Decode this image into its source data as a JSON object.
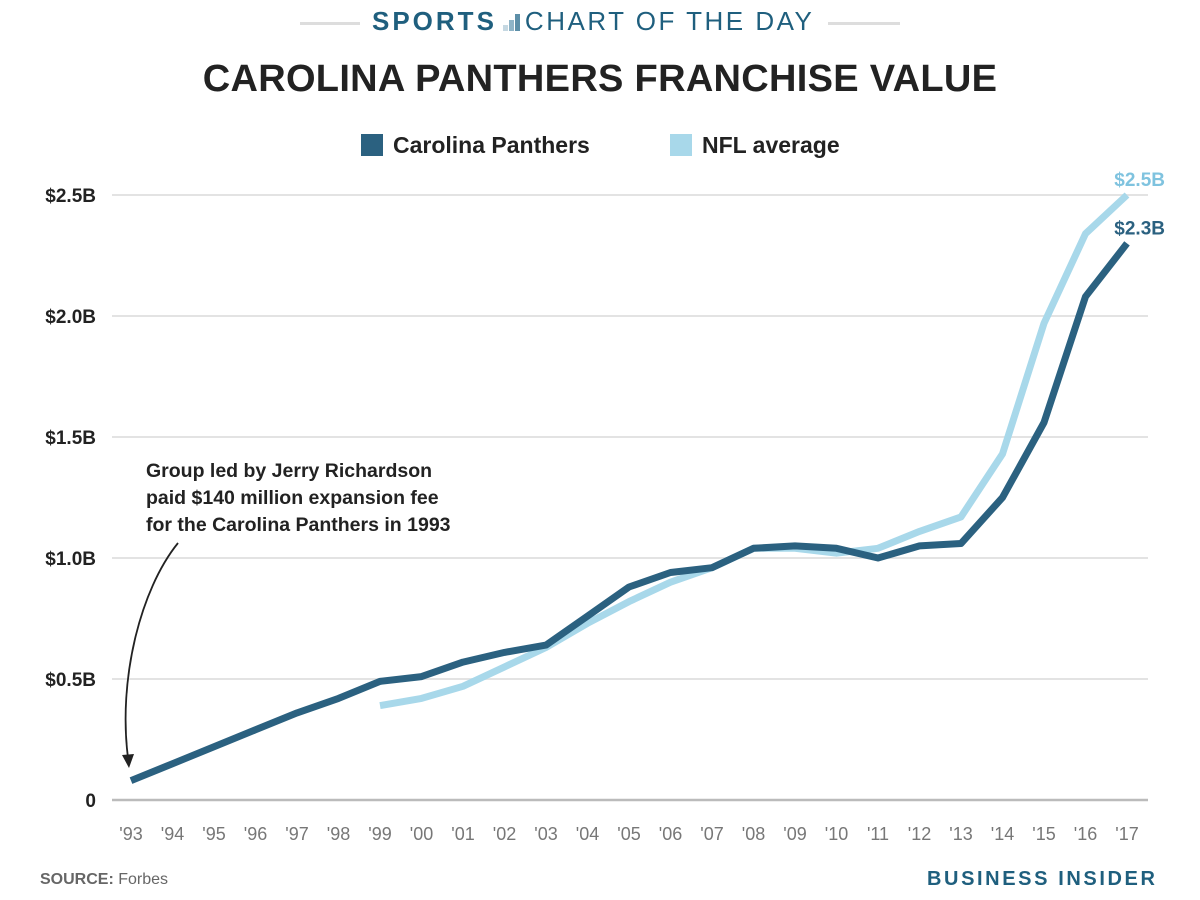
{
  "header": {
    "kicker_bold": "SPORTS",
    "kicker_rest": "CHART OF THE DAY",
    "kicker_icon": "bar-chart-icon",
    "title": "CAROLINA PANTHERS FRANCHISE VALUE"
  },
  "colors": {
    "panthers": "#2b6180",
    "nfl_average": "#a8d8ea",
    "panthers_label": "#2b6180",
    "nfl_label": "#7fc3df",
    "brand": "#1f5f7e",
    "grid": "#e3e3e3",
    "axis": "#bbbbbb"
  },
  "annotation": {
    "lines": [
      "Group led by Jerry Richardson",
      "paid $140 million expansion fee",
      "for the Carolina Panthers in 1993"
    ]
  },
  "footer": {
    "source_label": "SOURCE:",
    "source_value": "Forbes",
    "brand": "BUSINESS INSIDER"
  },
  "chart_data": {
    "type": "line",
    "title": "CAROLINA PANTHERS FRANCHISE VALUE",
    "xlabel": "",
    "ylabel": "",
    "unit": "billions USD",
    "x": [
      "'93",
      "'94",
      "'95",
      "'96",
      "'97",
      "'98",
      "'99",
      "'00",
      "'01",
      "'02",
      "'03",
      "'04",
      "'05",
      "'06",
      "'07",
      "'08",
      "'09",
      "'10",
      "'11",
      "'12",
      "'13",
      "'14",
      "'15",
      "'16",
      "'17"
    ],
    "ylim": [
      0,
      2.5
    ],
    "yticks": [
      0,
      0.5,
      1.0,
      1.5,
      2.0,
      2.5
    ],
    "ytick_labels": [
      "0",
      "$0.5B",
      "$1.0B",
      "$1.5B",
      "$2.0B",
      "$2.5B"
    ],
    "grid": true,
    "legend_position": "top-center",
    "series": [
      {
        "name": "Carolina Panthers",
        "values": [
          0.08,
          0.15,
          0.22,
          0.29,
          0.36,
          0.42,
          0.49,
          0.51,
          0.57,
          0.61,
          0.64,
          0.76,
          0.88,
          0.94,
          0.96,
          1.04,
          1.05,
          1.04,
          1.0,
          1.05,
          1.06,
          1.25,
          1.56,
          2.08,
          2.3
        ],
        "end_label": "$2.3B"
      },
      {
        "name": "NFL average",
        "values": [
          null,
          null,
          null,
          null,
          null,
          null,
          0.39,
          0.42,
          0.47,
          0.55,
          0.63,
          0.73,
          0.82,
          0.9,
          0.96,
          1.04,
          1.04,
          1.02,
          1.04,
          1.11,
          1.17,
          1.43,
          1.97,
          2.34,
          2.5
        ],
        "end_label": "$2.5B"
      }
    ]
  }
}
